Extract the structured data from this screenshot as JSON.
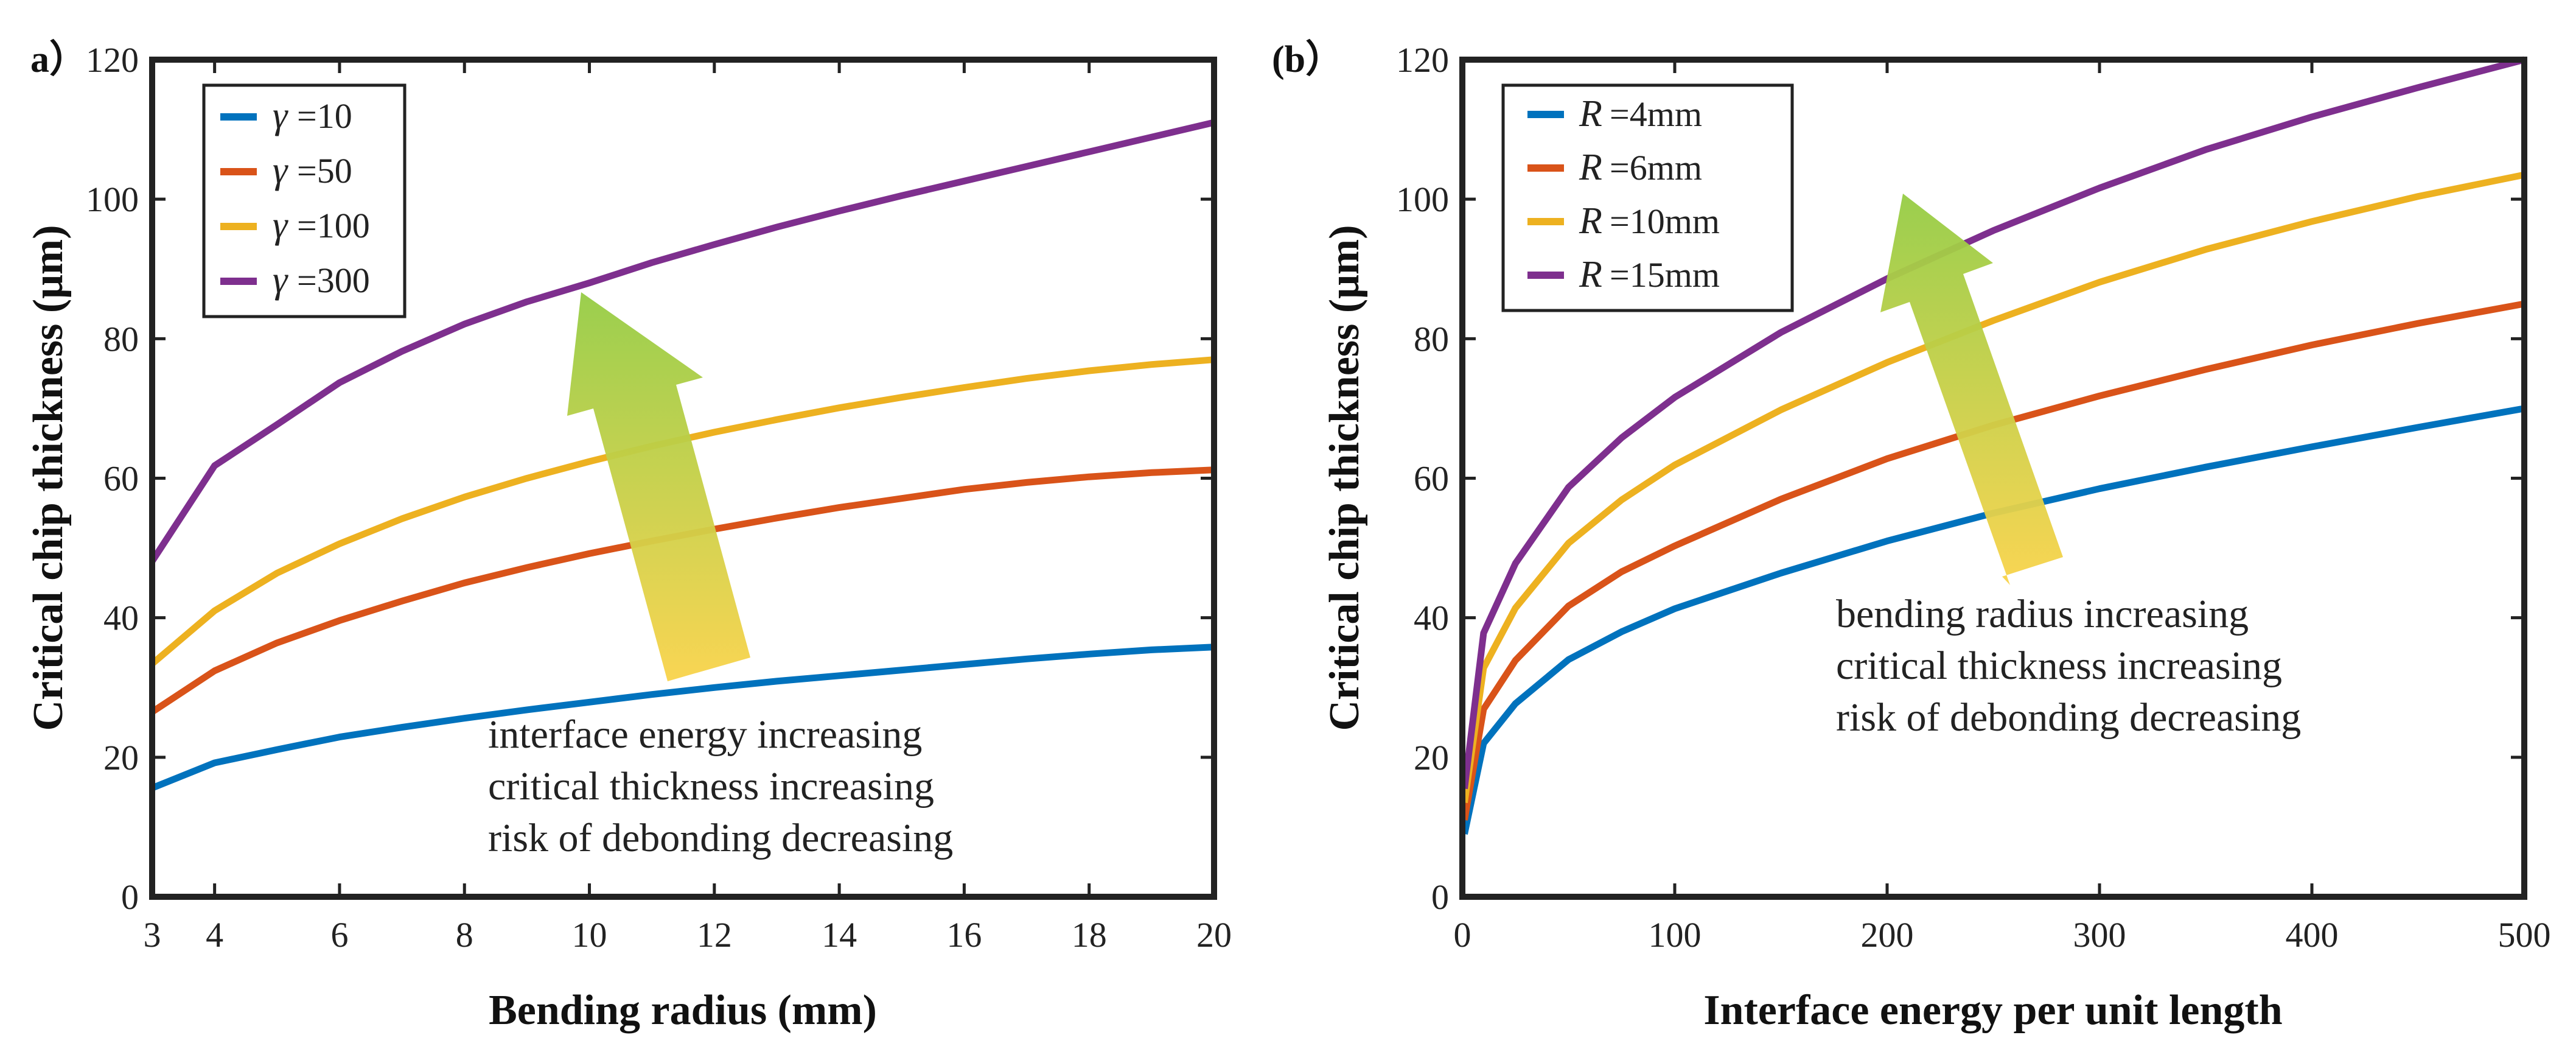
{
  "chart_data": [
    {
      "panel_label": "a）",
      "type": "line",
      "title": "",
      "xlabel": "Bending radius (mm)",
      "ylabel": "Critical chip thickness (μm)",
      "xlim": [
        3,
        20
      ],
      "ylim": [
        0,
        120
      ],
      "xticks": [
        3,
        4,
        6,
        8,
        10,
        12,
        14,
        16,
        18,
        20
      ],
      "yticks": [
        0,
        20,
        40,
        60,
        80,
        100,
        120
      ],
      "grid": false,
      "legend_position": "top-left",
      "legend_symbol": "γ",
      "x": [
        3,
        4,
        5,
        6,
        7,
        8,
        9,
        10,
        11,
        12,
        13,
        14,
        15,
        16,
        17,
        18,
        19,
        20
      ],
      "series": [
        {
          "name": "=10",
          "color": "#0072BD",
          "values": [
            15.6,
            19.2,
            21.1,
            22.9,
            24.3,
            25.6,
            26.8,
            27.9,
            29.0,
            30.0,
            30.9,
            31.7,
            32.5,
            33.3,
            34.1,
            34.8,
            35.4,
            35.8
          ]
        },
        {
          "name": "=50",
          "color": "#D95319",
          "values": [
            26.5,
            32.4,
            36.4,
            39.6,
            42.4,
            45.0,
            47.2,
            49.2,
            51.0,
            52.7,
            54.3,
            55.8,
            57.1,
            58.4,
            59.4,
            60.2,
            60.8,
            61.2
          ]
        },
        {
          "name": "=100",
          "color": "#EDB120",
          "values": [
            33.4,
            41.0,
            46.4,
            50.6,
            54.2,
            57.3,
            60.0,
            62.4,
            64.6,
            66.6,
            68.4,
            70.1,
            71.6,
            73.0,
            74.3,
            75.4,
            76.3,
            77.0
          ]
        },
        {
          "name": "=300",
          "color": "#7E2F8E",
          "values": [
            48.1,
            61.8,
            67.7,
            73.7,
            78.2,
            82.1,
            85.3,
            88.0,
            90.9,
            93.5,
            96.0,
            98.3,
            100.5,
            102.6,
            104.7,
            106.8,
            108.9,
            111.0
          ]
        }
      ],
      "annotation": [
        "interface energy increasing",
        "critical thickness increasing",
        "risk of debonding decreasing"
      ]
    },
    {
      "panel_label": "(b）",
      "type": "line",
      "title": "",
      "xlabel": "Interface energy per unit length",
      "ylabel": "Critical chip thickness (μm)",
      "xlim": [
        0,
        500
      ],
      "ylim": [
        0,
        120
      ],
      "xticks": [
        0,
        100,
        200,
        300,
        400,
        500
      ],
      "yticks": [
        0,
        20,
        40,
        60,
        80,
        100,
        120
      ],
      "grid": false,
      "legend_position": "top-left",
      "legend_symbol": "R",
      "x": [
        1,
        10,
        25,
        50,
        75,
        100,
        150,
        200,
        250,
        300,
        350,
        400,
        450,
        500
      ],
      "series": [
        {
          "name": "=4mm",
          "color": "#0072BD",
          "values": [
            9.0,
            22.0,
            27.7,
            34.0,
            38.0,
            41.3,
            46.4,
            51.0,
            55.0,
            58.5,
            61.6,
            64.5,
            67.3,
            70.0
          ]
        },
        {
          "name": "=6mm",
          "color": "#D95319",
          "values": [
            11.0,
            26.9,
            33.9,
            41.7,
            46.6,
            50.3,
            57.0,
            62.8,
            67.6,
            71.8,
            75.6,
            79.1,
            82.2,
            85.0
          ]
        },
        {
          "name": "=10mm",
          "color": "#EDB120",
          "values": [
            13.5,
            32.8,
            41.4,
            50.7,
            56.9,
            61.9,
            69.8,
            76.6,
            82.6,
            88.1,
            92.8,
            96.8,
            100.4,
            103.5
          ]
        },
        {
          "name": "=15mm",
          "color": "#7E2F8E",
          "values": [
            15.5,
            37.8,
            47.8,
            58.7,
            65.8,
            71.6,
            80.9,
            88.6,
            95.5,
            101.6,
            107.1,
            111.8,
            116.0,
            120.0
          ]
        }
      ],
      "annotation": [
        "bending radius increasing",
        "critical thickness increasing",
        "risk of debonding decreasing"
      ]
    }
  ]
}
